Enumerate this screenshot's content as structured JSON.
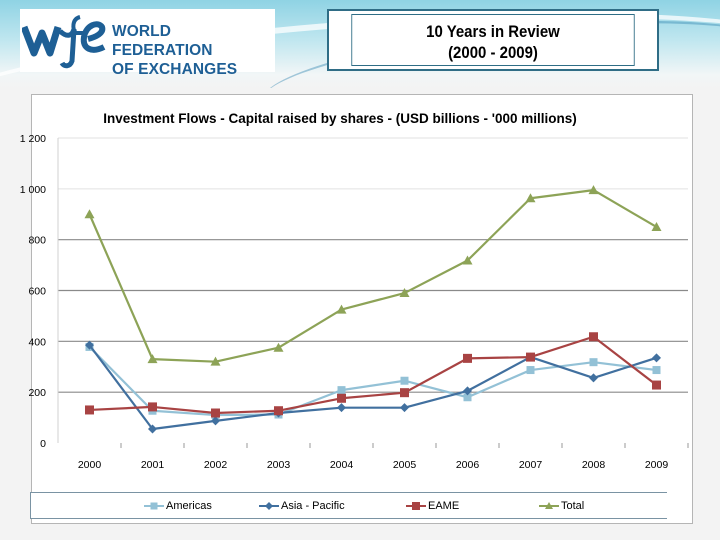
{
  "banner": {
    "logo": {
      "mark": "wfe",
      "line1": "WORLD FEDERATION",
      "line2": "OF EXCHANGES",
      "color": "#1e5f95"
    },
    "title": {
      "line1": "10 Years in Review",
      "line2": "(2000 - 2009)"
    }
  },
  "chart_data": {
    "type": "line",
    "title": "Investment Flows - Capital raised by shares - (USD billions - '000 millions)",
    "xlabel": "",
    "ylabel": "",
    "categories": [
      "2000",
      "2001",
      "2002",
      "2003",
      "2004",
      "2005",
      "2006",
      "2007",
      "2008",
      "2009"
    ],
    "ylim": [
      0,
      1200
    ],
    "yticks": [
      0,
      200,
      400,
      600,
      800,
      1000,
      1200
    ],
    "ytick_labels": [
      "0",
      "200",
      "400",
      "600",
      "800",
      "1 000",
      "1 200"
    ],
    "grid": true,
    "legend_position": "bottom",
    "series": [
      {
        "name": "Americas",
        "color": "#93c1d6",
        "marker": "square",
        "values": [
          378,
          127,
          110,
          112,
          208,
          245,
          180,
          287,
          318,
          287
        ]
      },
      {
        "name": "Asia - Pacific",
        "color": "#41709f",
        "marker": "diamond",
        "values": [
          385,
          55,
          87,
          118,
          139,
          139,
          205,
          338,
          256,
          335
        ]
      },
      {
        "name": "EAME",
        "color": "#a84343",
        "marker": "square",
        "values": [
          130,
          142,
          118,
          127,
          176,
          198,
          333,
          338,
          418,
          228
        ]
      },
      {
        "name": "Total",
        "color": "#8da357",
        "marker": "triangle",
        "values": [
          900,
          330,
          320,
          375,
          525,
          590,
          718,
          963,
          995,
          850
        ]
      }
    ]
  }
}
